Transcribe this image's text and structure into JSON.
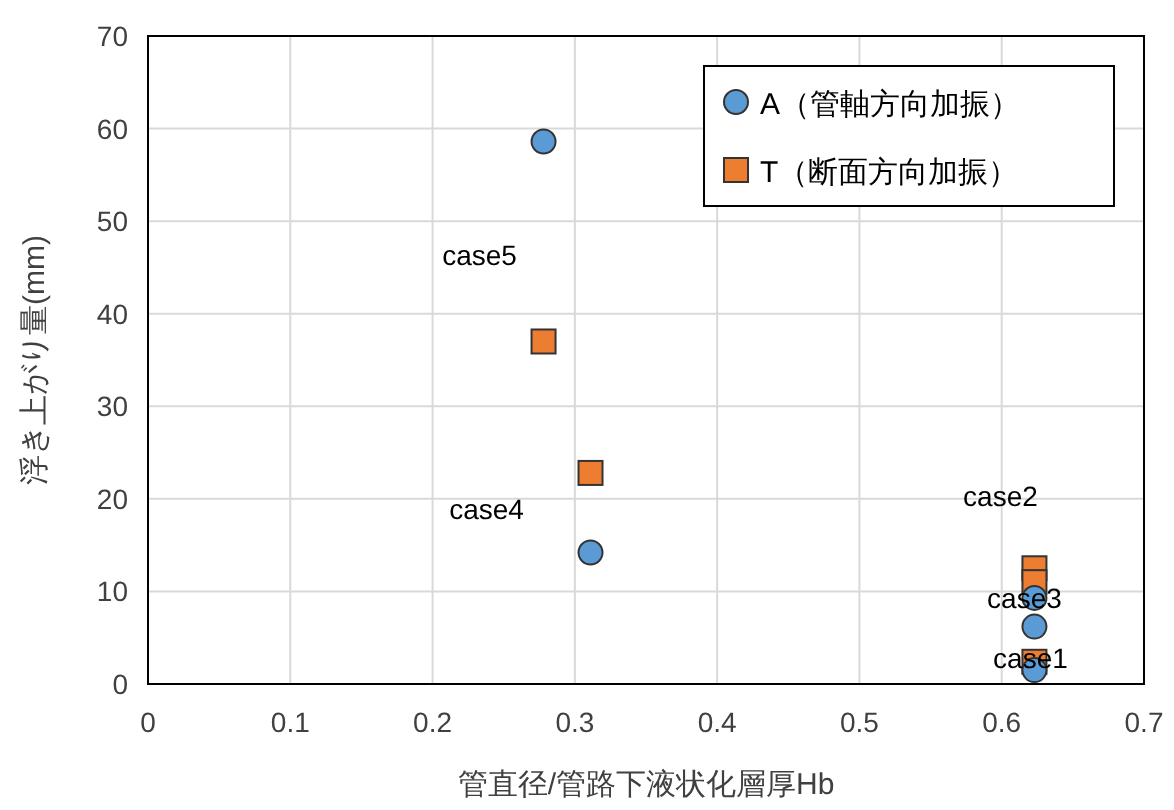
{
  "chart_data": {
    "type": "scatter",
    "xlabel": "管直径/管路下液状化層厚Hb",
    "ylabel": "浮き上がり量(mm)",
    "x": [
      0.278,
      0.311,
      0.623,
      0.623,
      0.623
    ],
    "series": [
      {
        "name": "A（管軸方向加振）",
        "color": "#5b9bd5",
        "marker": "circle",
        "values": [
          58.6,
          14.2,
          9.3,
          6.2,
          1.5
        ]
      },
      {
        "name": "T（断面方向加振）",
        "color": "#ed7d31",
        "marker": "square",
        "values": [
          37.0,
          22.8,
          12.5,
          11.0,
          2.4
        ]
      }
    ],
    "xlim": [
      0,
      0.7
    ],
    "xticks": [
      0,
      0.1,
      0.2,
      0.3,
      0.4,
      0.5,
      0.6,
      0.7
    ],
    "ylim": [
      0,
      70
    ],
    "yticks": [
      0,
      10,
      20,
      30,
      40,
      50,
      60,
      70
    ],
    "grid": true,
    "legend": "top right",
    "annotations": [
      {
        "text": "case5",
        "x": 0.278,
        "y": 37.0
      },
      {
        "text": "case4",
        "x": 0.311,
        "y": 14.2
      },
      {
        "text": "case2",
        "x": 0.623,
        "y": 12.5
      },
      {
        "text": "case3",
        "x": 0.623,
        "y": 9.3
      },
      {
        "text": "case1",
        "x": 0.623,
        "y": 2.4
      }
    ]
  }
}
